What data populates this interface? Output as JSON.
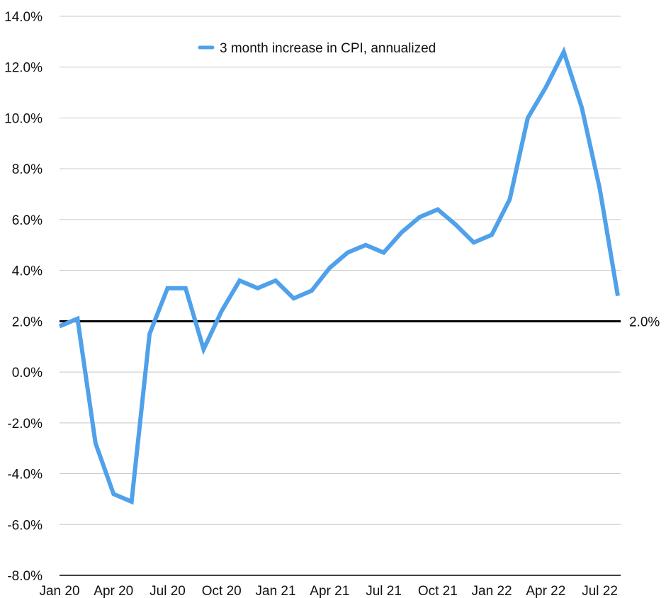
{
  "chart_data": {
    "type": "line",
    "title": "",
    "xlabel": "",
    "ylabel": "",
    "ylim": [
      -8,
      14
    ],
    "y_ticks": [
      -8,
      -6,
      -4,
      -2,
      0,
      2,
      4,
      6,
      8,
      10,
      12,
      14
    ],
    "y_tick_labels": [
      "-8.0%",
      "-6.0%",
      "-4.0%",
      "-2.0%",
      "0.0%",
      "2.0%",
      "4.0%",
      "6.0%",
      "8.0%",
      "10.0%",
      "12.0%",
      "14.0%"
    ],
    "x": [
      "Jan 20",
      "Feb 20",
      "Mar 20",
      "Apr 20",
      "May 20",
      "Jun 20",
      "Jul 20",
      "Aug 20",
      "Sep 20",
      "Oct 20",
      "Nov 20",
      "Dec 20",
      "Jan 21",
      "Feb 21",
      "Mar 21",
      "Apr 21",
      "May 21",
      "Jun 21",
      "Jul 21",
      "Aug 21",
      "Sep 21",
      "Oct 21",
      "Nov 21",
      "Dec 21",
      "Jan 22",
      "Feb 22",
      "Mar 22",
      "Apr 22",
      "May 22",
      "Jun 22",
      "Jul 22",
      "Aug 22"
    ],
    "x_tick_labels": [
      "Jan 20",
      "Apr 20",
      "Jul 20",
      "Oct 20",
      "Jan 21",
      "Apr 21",
      "Jul 21",
      "Oct 21",
      "Jan 22",
      "Apr 22",
      "Jul 22"
    ],
    "series": [
      {
        "name": "3 month increase in CPI, annualized",
        "color": "#4ea1ea",
        "values": [
          1.8,
          2.1,
          -2.8,
          -4.8,
          -5.1,
          1.5,
          3.3,
          3.3,
          0.9,
          2.4,
          3.6,
          3.3,
          3.6,
          2.9,
          3.2,
          4.1,
          4.7,
          5.0,
          4.7,
          5.5,
          6.1,
          6.4,
          5.8,
          5.1,
          5.4,
          6.8,
          10.0,
          11.2,
          12.6,
          10.4,
          7.2,
          3.0
        ]
      }
    ],
    "reference_line": {
      "value": 2.0,
      "label": "2.0%",
      "color": "#000000"
    },
    "legend": {
      "placement": "top-center",
      "label": "3 month increase in CPI, annualized"
    },
    "grid": true,
    "grid_color": "#c8c8c8"
  }
}
